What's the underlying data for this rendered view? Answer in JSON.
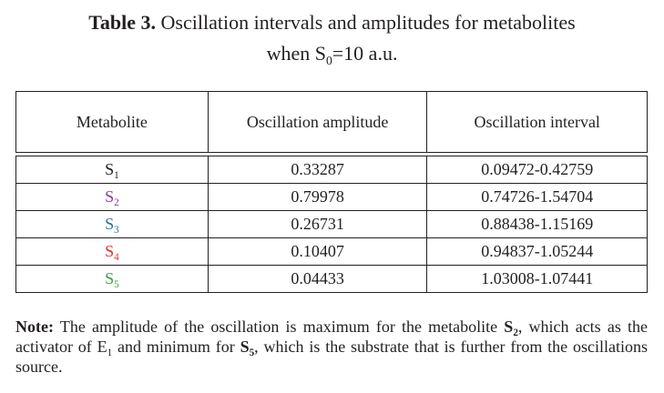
{
  "caption": {
    "label": "Table 3.",
    "title": "Oscillation intervals and amplitudes for metabolites",
    "line2_prefix": "when S",
    "line2_sub": "0",
    "line2_suffix": "=10 a.u."
  },
  "table": {
    "headers": [
      "Metabolite",
      "Oscillation amplitude",
      "Oscillation interval"
    ],
    "rows": [
      {
        "metabolite": "S",
        "sub": "1",
        "color": "#231f20",
        "amplitude": "0.33287",
        "interval": "0.09472-0.42759"
      },
      {
        "metabolite": "S",
        "sub": "2",
        "color": "#8e3b96",
        "amplitude": "0.79978",
        "interval": "0.74726-1.54704"
      },
      {
        "metabolite": "S",
        "sub": "3",
        "color": "#2f6db5",
        "amplitude": "0.26731",
        "interval": "0.88438-1.15169"
      },
      {
        "metabolite": "S",
        "sub": "4",
        "color": "#e0312e",
        "amplitude": "0.10407",
        "interval": "0.94837-1.05244"
      },
      {
        "metabolite": "S",
        "sub": "5",
        "color": "#3aa143",
        "amplitude": "0.04433",
        "interval": "1.03008-1.07441"
      }
    ]
  },
  "note": {
    "label": "Note:",
    "t1": " The amplitude of the oscillation is maximum for the metabolite ",
    "s2": "S",
    "s2_sub": "2",
    "t2": ", which acts as the activator of E",
    "e_sub": "1",
    "t3": " and minimum for ",
    "s5": "S",
    "s5_sub": "5",
    "t4": ", which is the substrate that is further from the oscillations source."
  }
}
